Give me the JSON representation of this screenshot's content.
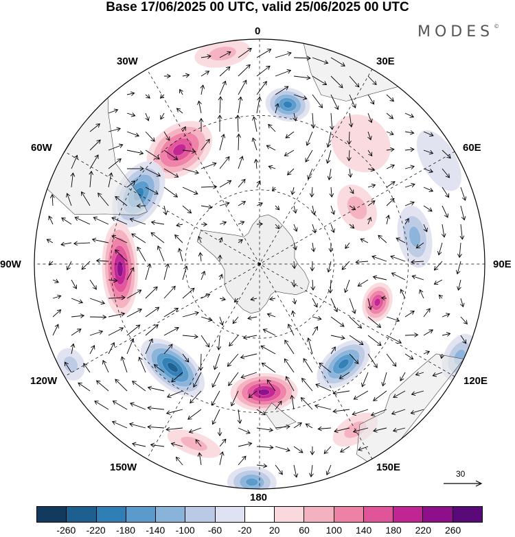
{
  "title": "Base 17/06/2025 00 UTC, valid 25/06/2025 00 UTC",
  "brand": "MODES",
  "brand_mark": "©",
  "map": {
    "projection": "south-polar-stereographic",
    "longitude_labels": [
      "0",
      "30E",
      "60E",
      "90E",
      "120E",
      "150E",
      "180",
      "150W",
      "120W",
      "90W",
      "60W",
      "30W"
    ],
    "field": "anomaly with wind vectors",
    "land_colors": {
      "land": "#e9e9e9",
      "coast": "#444444"
    }
  },
  "reference_vector": {
    "label": "30"
  },
  "colorbar": {
    "colors": [
      "#123a5e",
      "#1d5f8f",
      "#2f7fb6",
      "#5a9bcb",
      "#8ab3da",
      "#bac9e4",
      "#dfe2f0",
      "#ffffff",
      "#f9d9de",
      "#f4b1c0",
      "#ee82a6",
      "#e0559a",
      "#c12593",
      "#8e0f8a",
      "#5a0a78"
    ],
    "ticks": [
      "-260",
      "-220",
      "-180",
      "-140",
      "-100",
      "-60",
      "-20",
      "20",
      "60",
      "100",
      "140",
      "180",
      "220",
      "260"
    ]
  },
  "blobs": [
    {
      "lon": -35,
      "r": 0.62,
      "val": 200,
      "w": 0.32,
      "h": 0.22
    },
    {
      "lon": 10,
      "r": 0.72,
      "val": -180,
      "w": 0.2,
      "h": 0.15
    },
    {
      "lon": 40,
      "r": 0.7,
      "val": 40,
      "w": 0.28,
      "h": 0.24
    },
    {
      "lon": 60,
      "r": 0.5,
      "val": 60,
      "w": 0.22,
      "h": 0.16
    },
    {
      "lon": 80,
      "r": 0.7,
      "val": -110,
      "w": 0.28,
      "h": 0.15
    },
    {
      "lon": -60,
      "r": 0.62,
      "val": -200,
      "w": 0.32,
      "h": 0.2
    },
    {
      "lon": -92,
      "r": 0.62,
      "val": 250,
      "w": 0.42,
      "h": 0.16
    },
    {
      "lon": -140,
      "r": 0.6,
      "val": -250,
      "w": 0.34,
      "h": 0.18
    },
    {
      "lon": 108,
      "r": 0.55,
      "val": 190,
      "w": 0.18,
      "h": 0.13
    },
    {
      "lon": 140,
      "r": 0.58,
      "val": -210,
      "w": 0.28,
      "h": 0.16
    },
    {
      "lon": 178,
      "r": 0.57,
      "val": 220,
      "w": 0.3,
      "h": 0.17
    },
    {
      "lon": -178,
      "r": 0.97,
      "val": -170,
      "w": 0.22,
      "h": 0.14
    },
    {
      "lon": 115,
      "r": 0.98,
      "val": -110,
      "w": 0.22,
      "h": 0.14
    },
    {
      "lon": -118,
      "r": 0.95,
      "val": -90,
      "w": 0.15,
      "h": 0.12
    },
    {
      "lon": -160,
      "r": 0.85,
      "val": 60,
      "w": 0.25,
      "h": 0.1
    },
    {
      "lon": 150,
      "r": 0.85,
      "val": 70,
      "w": 0.22,
      "h": 0.12
    },
    {
      "lon": -10,
      "r": 0.95,
      "val": 60,
      "w": 0.25,
      "h": 0.12
    },
    {
      "lon": 60,
      "r": 0.92,
      "val": -40,
      "w": 0.3,
      "h": 0.15
    }
  ]
}
